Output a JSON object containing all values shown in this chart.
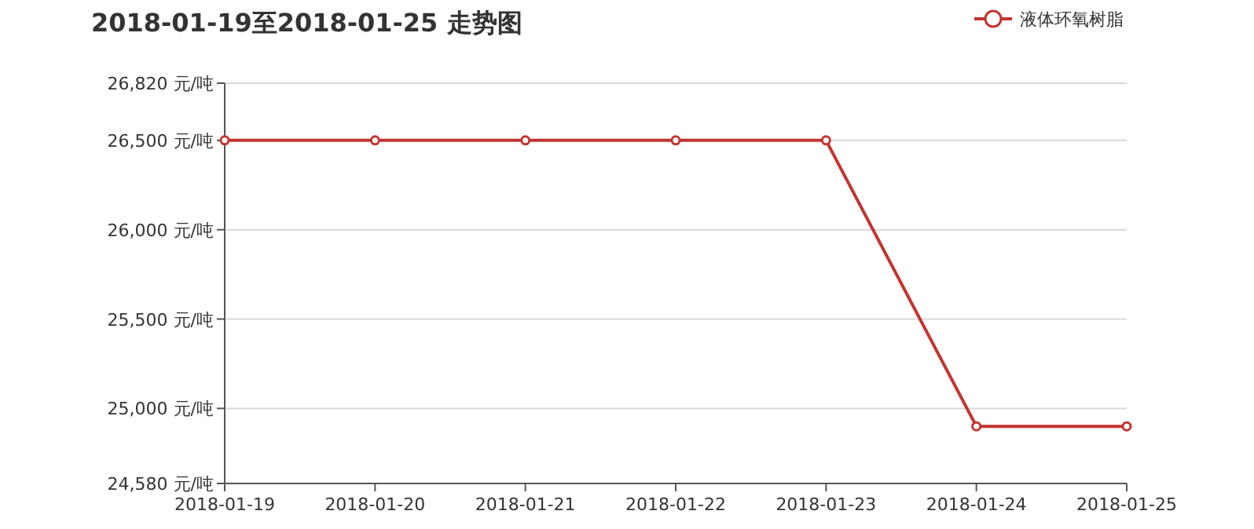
{
  "chart_data": {
    "type": "line",
    "title": "2018-01-19至2018-01-25 走势图",
    "categories": [
      "2018-01-19",
      "2018-01-20",
      "2018-01-21",
      "2018-01-22",
      "2018-01-23",
      "2018-01-24",
      "2018-01-25"
    ],
    "series": [
      {
        "name": "液体环氧树脂",
        "color": "#c23531",
        "values": [
          26500,
          26500,
          26500,
          26500,
          26500,
          24900,
          24900
        ]
      }
    ],
    "ylim": [
      24580,
      26820
    ],
    "yticks": [
      {
        "value": 24580,
        "label": "24,580 元/吨"
      },
      {
        "value": 25000,
        "label": "25,000 元/吨"
      },
      {
        "value": 25500,
        "label": "25,500 元/吨"
      },
      {
        "value": 26000,
        "label": "26,000 元/吨"
      },
      {
        "value": 26500,
        "label": "26,500 元/吨"
      },
      {
        "value": 26820,
        "label": "26,820 元/吨"
      }
    ],
    "grid": "y",
    "legend": "top right",
    "marker": "circle",
    "line_style": "solid"
  }
}
